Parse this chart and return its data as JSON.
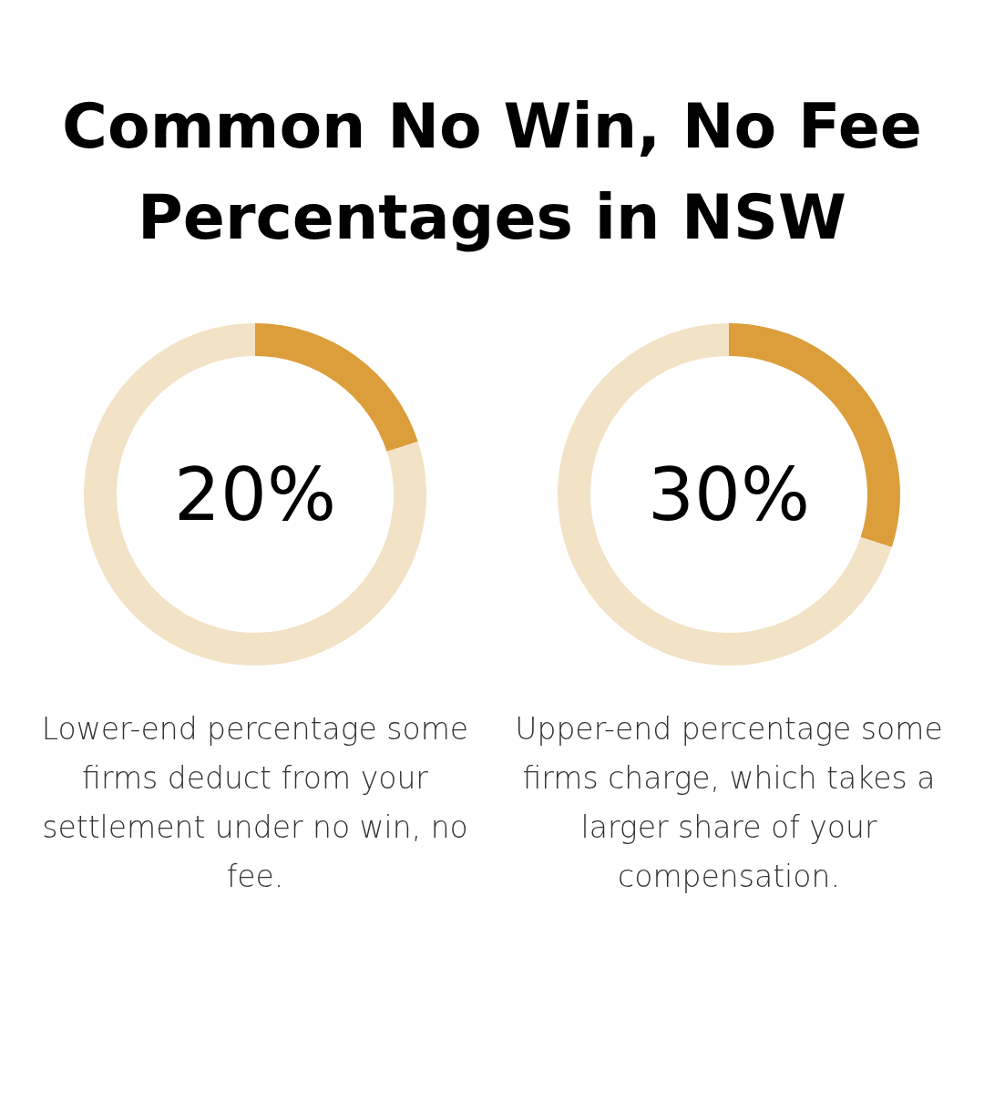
{
  "chart_data": [
    {
      "type": "donut",
      "title": "Common No Win, No Fee Percentages in NSW",
      "categories": [
        null,
        null
      ],
      "values": [
        20,
        80
      ],
      "colors": [
        "#dc9e3a",
        "#f3e3c6"
      ],
      "annotations": [
        "20%",
        "Lower-end percentage some firms deduct from your settlement under no win, no fee."
      ]
    },
    {
      "type": "donut",
      "categories": [
        null,
        null
      ],
      "values": [
        30,
        70
      ],
      "colors": [
        "#dc9e3a",
        "#f3e3c6"
      ],
      "annotations": [
        "30%",
        "Upper-end percentage some firms charge, which takes a larger share of your compensation."
      ]
    }
  ]
}
